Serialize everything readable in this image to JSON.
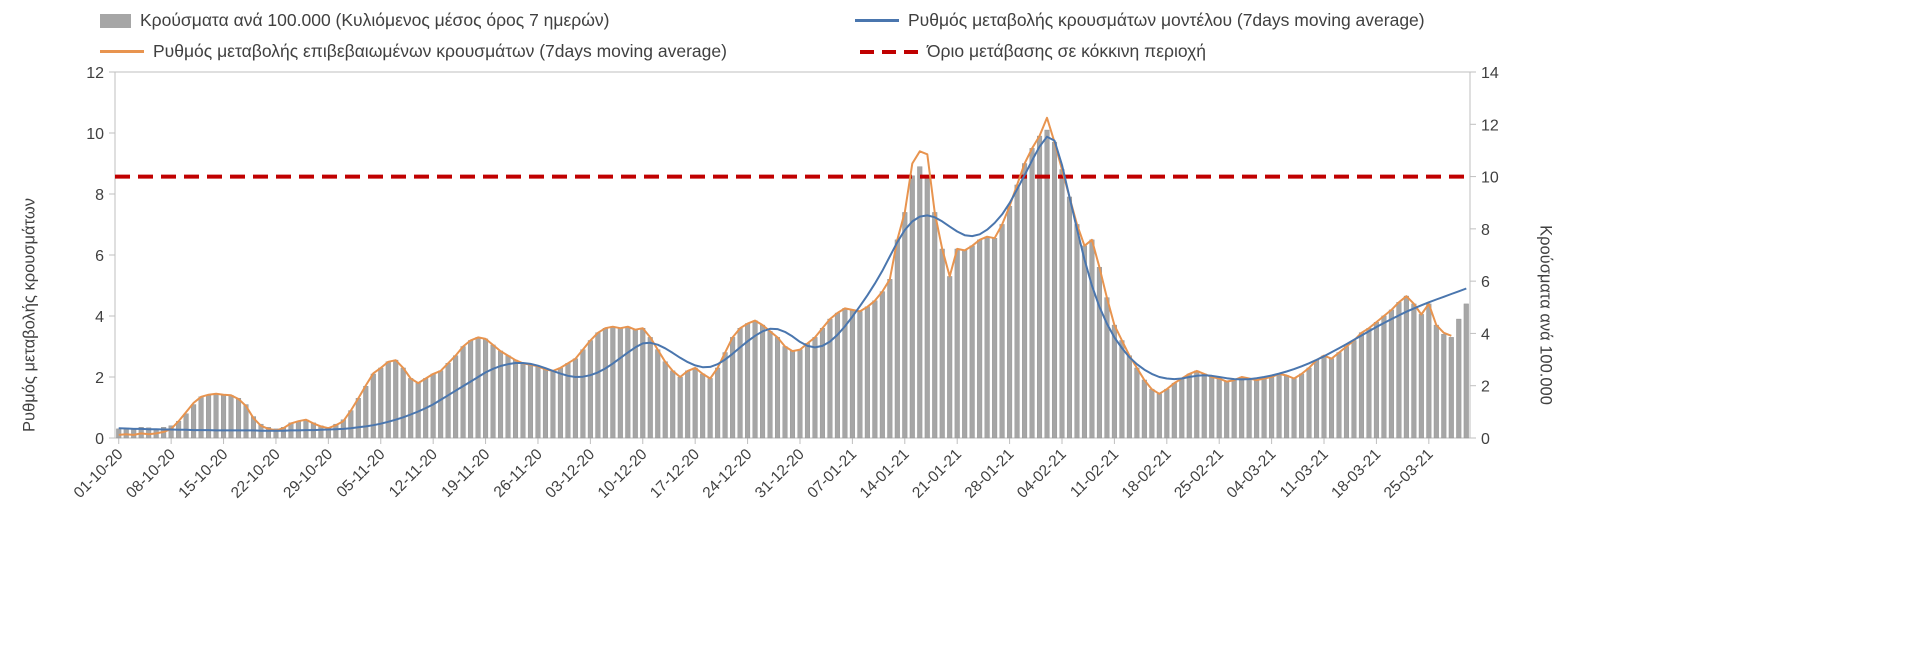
{
  "colors": {
    "bars": "#a6a6a6",
    "model_line": "#4a76ae",
    "confirmed_line": "#e8944f",
    "threshold": "#c00000",
    "axis": "#bfbfbf",
    "text": "#404040",
    "background": "#ffffff"
  },
  "legend": {
    "items": [
      {
        "label": "Κρούσματα ανά 100.000 (Κυλιόμενος μέσος όρος 7 ημερών)",
        "swatch": "bar",
        "color": "#a6a6a6"
      },
      {
        "label": "Ρυθμός μεταβολής κρουσμάτων μοντέλου (7days moving average)",
        "swatch": "line",
        "color": "#4a76ae"
      },
      {
        "label": "Ρυθμός μεταβολής επιβεβαιωμένων κρουσμάτων (7days moving average)",
        "swatch": "line",
        "color": "#e8944f"
      },
      {
        "label": "Όριο μετάβασης σε κόκκινη περιοχή",
        "swatch": "dash",
        "color": "#c00000"
      }
    ]
  },
  "chart_data": {
    "type": "bar+line",
    "title": "",
    "left_axis": {
      "title": "Ρυθμός μεταβολής κρουσμάτων",
      "min": 0,
      "max": 12,
      "tick_step": 2
    },
    "right_axis": {
      "title": "Κρούσματα ανά 100.000",
      "min": 0,
      "max": 14,
      "tick_step": 2
    },
    "x": {
      "tick_every_days": 7,
      "tick_labels": [
        "01-10-20",
        "08-10-20",
        "15-10-20",
        "22-10-20",
        "29-10-20",
        "05-11-20",
        "12-11-20",
        "19-11-20",
        "26-11-20",
        "03-12-20",
        "10-12-20",
        "17-12-20",
        "24-12-20",
        "31-12-20",
        "07-01-21",
        "14-01-21",
        "21-01-21",
        "28-01-21",
        "04-02-21",
        "11-02-21",
        "18-02-21",
        "25-02-21",
        "04-03-21",
        "11-03-21",
        "18-03-21",
        "25-03-21"
      ]
    },
    "threshold_line": {
      "label": "Όριο μετάβασης σε κόκκινη περιοχή",
      "axis": "right",
      "value": 10,
      "color": "#c00000",
      "style": "dashed"
    },
    "grid": false,
    "legend_position": "top",
    "series": [
      {
        "name": "Κρούσματα ανά 100.000 (Κυλιόμενος μέσος όρος 7 ημερών)",
        "type": "bar",
        "axis": "right",
        "color": "#a6a6a6",
        "values": [
          0.35,
          0.37,
          0.35,
          0.41,
          0.39,
          0.35,
          0.41,
          0.47,
          0.64,
          0.93,
          1.28,
          1.58,
          1.63,
          1.69,
          1.63,
          1.63,
          1.52,
          1.28,
          0.82,
          0.53,
          0.41,
          0.35,
          0.41,
          0.58,
          0.64,
          0.7,
          0.58,
          0.47,
          0.41,
          0.53,
          0.7,
          1.05,
          1.52,
          1.98,
          2.45,
          2.68,
          2.92,
          2.98,
          2.68,
          2.28,
          2.1,
          2.28,
          2.45,
          2.57,
          2.86,
          3.15,
          3.5,
          3.73,
          3.85,
          3.79,
          3.56,
          3.33,
          3.15,
          2.98,
          2.86,
          2.8,
          2.74,
          2.63,
          2.57,
          2.68,
          2.86,
          3.03,
          3.38,
          3.73,
          4.03,
          4.2,
          4.26,
          4.2,
          4.26,
          4.14,
          4.2,
          3.85,
          3.38,
          2.92,
          2.57,
          2.33,
          2.57,
          2.68,
          2.45,
          2.28,
          2.68,
          3.27,
          3.85,
          4.2,
          4.38,
          4.49,
          4.32,
          4.08,
          3.85,
          3.5,
          3.33,
          3.38,
          3.62,
          3.85,
          4.2,
          4.55,
          4.78,
          4.96,
          4.9,
          4.84,
          5.02,
          5.25,
          5.6,
          6.07,
          7.58,
          8.63,
          10.03,
          10.38,
          10.03,
          8.63,
          7.23,
          6.18,
          7.23,
          7.18,
          7.35,
          7.58,
          7.7,
          7.64,
          8.17,
          8.87,
          9.68,
          10.5,
          11.08,
          11.55,
          11.78,
          11.32,
          10.27,
          9.22,
          8.17,
          7.35,
          7.58,
          6.53,
          5.37,
          4.32,
          3.73,
          3.15,
          2.68,
          2.22,
          1.87,
          1.69,
          1.87,
          2.1,
          2.28,
          2.45,
          2.57,
          2.45,
          2.33,
          2.28,
          2.16,
          2.22,
          2.33,
          2.28,
          2.22,
          2.28,
          2.33,
          2.45,
          2.39,
          2.28,
          2.45,
          2.68,
          2.98,
          3.15,
          3.03,
          3.27,
          3.5,
          3.73,
          4.03,
          4.2,
          4.43,
          4.67,
          4.9,
          5.19,
          5.43,
          5.13,
          4.73,
          5.13,
          4.32,
          3.97,
          3.85,
          4.55,
          5.13
        ]
      },
      {
        "name": "Ρυθμός μεταβολής επιβεβαιωμένων κρουσμάτων (7days moving average)",
        "type": "line",
        "axis": "left",
        "color": "#e8944f",
        "values": [
          0.1,
          0.12,
          0.1,
          0.15,
          0.12,
          0.15,
          0.2,
          0.3,
          0.55,
          0.85,
          1.15,
          1.35,
          1.42,
          1.45,
          1.42,
          1.4,
          1.28,
          1.05,
          0.65,
          0.4,
          0.3,
          0.25,
          0.32,
          0.48,
          0.55,
          0.6,
          0.48,
          0.38,
          0.32,
          0.42,
          0.55,
          0.9,
          1.3,
          1.72,
          2.12,
          2.3,
          2.5,
          2.55,
          2.3,
          1.95,
          1.8,
          1.95,
          2.1,
          2.2,
          2.45,
          2.7,
          3.0,
          3.2,
          3.3,
          3.25,
          3.05,
          2.85,
          2.7,
          2.55,
          2.45,
          2.4,
          2.35,
          2.25,
          2.2,
          2.3,
          2.45,
          2.6,
          2.9,
          3.2,
          3.45,
          3.6,
          3.65,
          3.6,
          3.65,
          3.55,
          3.6,
          3.3,
          2.9,
          2.5,
          2.2,
          2.0,
          2.2,
          2.3,
          2.1,
          1.95,
          2.3,
          2.8,
          3.3,
          3.6,
          3.75,
          3.85,
          3.7,
          3.5,
          3.3,
          3.0,
          2.85,
          2.9,
          3.1,
          3.3,
          3.6,
          3.9,
          4.1,
          4.25,
          4.2,
          4.15,
          4.3,
          4.5,
          4.8,
          5.2,
          6.5,
          7.4,
          9.0,
          9.4,
          9.3,
          7.4,
          6.2,
          5.3,
          6.2,
          6.15,
          6.3,
          6.5,
          6.6,
          6.55,
          7.0,
          7.6,
          8.3,
          9.0,
          9.5,
          9.9,
          10.5,
          9.7,
          8.8,
          7.9,
          7.0,
          6.3,
          6.5,
          5.6,
          4.6,
          3.7,
          3.2,
          2.7,
          2.3,
          1.9,
          1.6,
          1.45,
          1.6,
          1.8,
          1.95,
          2.1,
          2.2,
          2.1,
          2.0,
          1.95,
          1.85,
          1.9,
          2.0,
          1.95,
          1.9,
          1.95,
          2.0,
          2.1,
          2.05,
          1.95,
          2.1,
          2.3,
          2.55,
          2.7,
          2.6,
          2.8,
          3.0,
          3.2,
          3.45,
          3.6,
          3.8,
          4.0,
          4.2,
          4.45,
          4.65,
          4.4,
          4.05,
          4.4,
          3.7,
          3.45,
          3.35,
          null,
          null
        ]
      },
      {
        "name": "Ρυθμός μεταβολής κρουσμάτων μοντέλου (7days moving average)",
        "type": "line",
        "axis": "left",
        "color": "#4a76ae",
        "values": [
          0.32,
          0.31,
          0.3,
          0.3,
          0.29,
          0.29,
          0.28,
          0.28,
          0.27,
          0.27,
          0.26,
          0.26,
          0.26,
          0.25,
          0.25,
          0.25,
          0.25,
          0.25,
          0.25,
          0.24,
          0.24,
          0.24,
          0.24,
          0.25,
          0.25,
          0.26,
          0.26,
          0.27,
          0.28,
          0.29,
          0.3,
          0.32,
          0.35,
          0.38,
          0.42,
          0.47,
          0.53,
          0.6,
          0.68,
          0.77,
          0.87,
          0.98,
          1.1,
          1.25,
          1.4,
          1.55,
          1.7,
          1.85,
          2.0,
          2.15,
          2.27,
          2.36,
          2.42,
          2.46,
          2.46,
          2.43,
          2.37,
          2.29,
          2.2,
          2.11,
          2.04,
          2.0,
          2.01,
          2.06,
          2.15,
          2.28,
          2.44,
          2.62,
          2.8,
          2.97,
          3.1,
          3.12,
          3.06,
          2.94,
          2.79,
          2.63,
          2.49,
          2.38,
          2.32,
          2.33,
          2.42,
          2.57,
          2.76,
          2.97,
          3.17,
          3.35,
          3.5,
          3.58,
          3.57,
          3.48,
          3.33,
          3.15,
          3.02,
          2.97,
          3.02,
          3.16,
          3.38,
          3.66,
          3.98,
          4.32,
          4.68,
          5.06,
          5.48,
          5.95,
          6.42,
          6.82,
          7.1,
          7.26,
          7.3,
          7.24,
          7.1,
          6.93,
          6.77,
          6.65,
          6.62,
          6.68,
          6.83,
          7.05,
          7.33,
          7.7,
          8.15,
          8.62,
          9.1,
          9.55,
          9.88,
          9.75,
          8.95,
          7.9,
          6.85,
          5.85,
          5.0,
          4.3,
          3.75,
          3.3,
          2.95,
          2.65,
          2.42,
          2.24,
          2.1,
          2.0,
          1.95,
          1.93,
          1.95,
          2.0,
          2.04,
          2.06,
          2.04,
          2.0,
          1.96,
          1.93,
          1.92,
          1.93,
          1.96,
          2.0,
          2.05,
          2.11,
          2.18,
          2.26,
          2.35,
          2.45,
          2.56,
          2.68,
          2.81,
          2.94,
          3.08,
          3.22,
          3.36,
          3.5,
          3.64,
          3.77,
          3.9,
          4.02,
          4.14,
          4.25,
          4.35,
          4.45,
          4.54,
          4.63,
          4.72,
          4.81,
          4.9
        ]
      }
    ]
  }
}
